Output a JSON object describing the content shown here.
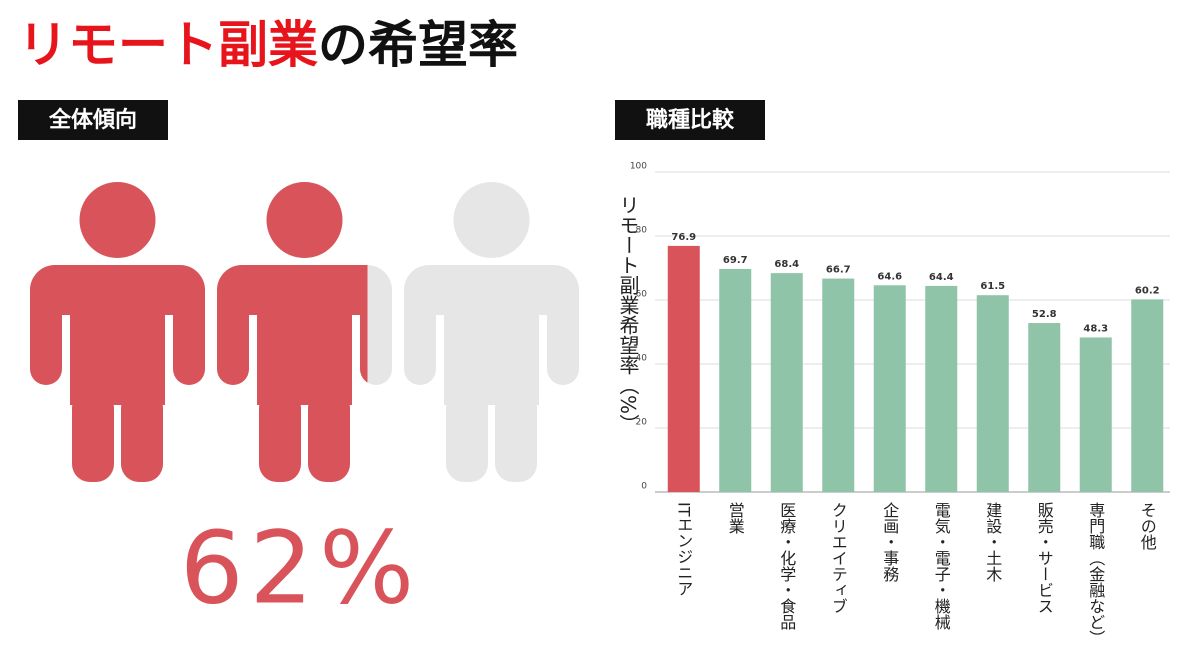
{
  "title": {
    "highlight": "リモート副業",
    "rest": "の希望率"
  },
  "overall": {
    "title": "全体傾向",
    "value": 62,
    "value_label": "62%",
    "color": "#d9545a",
    "empty_color": "#e6e6e6"
  },
  "chart_data": {
    "type": "bar",
    "title": "職種比較",
    "y_label": "リモート副業希望率（%）",
    "categories": [
      "ITエンジニア",
      "営業",
      "医療・化学・食品",
      "クリエイティブ",
      "企画・事務",
      "電気・電子・機械",
      "建設・土木",
      "販売・サービス",
      "専門職（金融など）",
      "その他"
    ],
    "values": [
      76.9,
      69.7,
      68.4,
      66.7,
      64.6,
      64.4,
      61.5,
      52.8,
      48.3,
      60.2
    ],
    "colors": [
      "#d9545a",
      "#8fc4a8",
      "#8fc4a8",
      "#8fc4a8",
      "#8fc4a8",
      "#8fc4a8",
      "#8fc4a8",
      "#8fc4a8",
      "#8fc4a8",
      "#8fc4a8"
    ],
    "ylim": [
      0,
      100
    ],
    "yticks": [
      0,
      20,
      40,
      60,
      80,
      100
    ],
    "grid": true
  }
}
